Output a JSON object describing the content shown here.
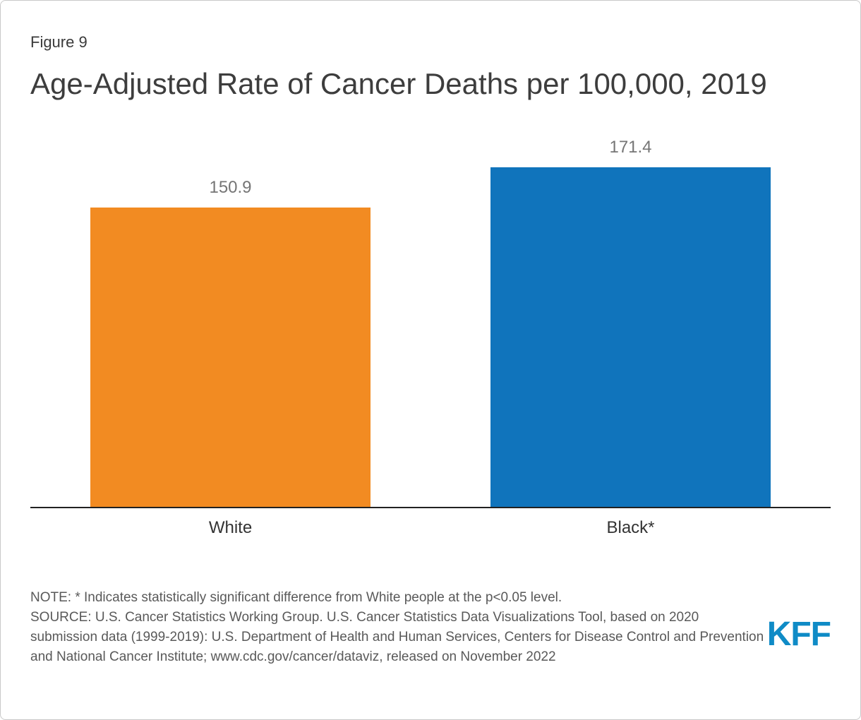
{
  "figure_label": "Figure 9",
  "title": "Age-Adjusted Rate of Cancer Deaths per 100,000, 2019",
  "chart_data": {
    "type": "bar",
    "categories": [
      "White",
      "Black*"
    ],
    "values": [
      150.9,
      171.4
    ],
    "title": "Age-Adjusted Rate of Cancer Deaths per 100,000, 2019",
    "xlabel": "",
    "ylabel": "",
    "ylim": [
      0,
      186
    ],
    "grid": false,
    "legend": "none",
    "bar_colors": [
      "#F28B22",
      "#1074BC"
    ],
    "value_label_color": "#757575"
  },
  "note": "NOTE: * Indicates statistically significant difference from White people at the p<0.05 level.",
  "source": "SOURCE: U.S. Cancer Statistics Working Group. U.S. Cancer Statistics Data Visualizations Tool, based on 2020 submission data (1999-2019): U.S. Department of Health and Human Services, Centers for Disease Control and Prevention and National Cancer Institute; www.cdc.gov/cancer/dataviz, released on November 2022",
  "logo_text": "KFF",
  "colors": {
    "accent_orange": "#F28B22",
    "accent_blue": "#1074BC",
    "logo_blue": "#0F8BC6"
  }
}
